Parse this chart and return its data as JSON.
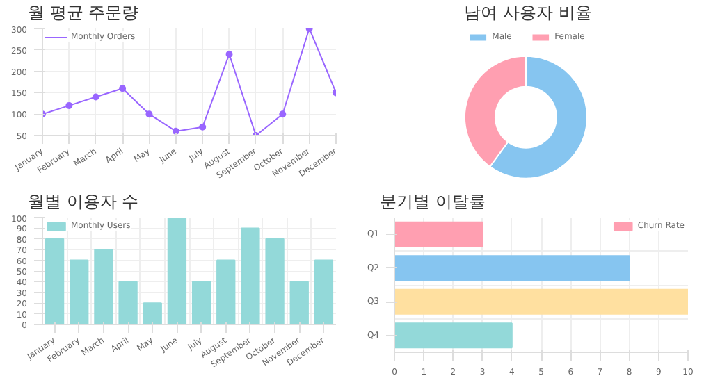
{
  "chart_data": [
    {
      "type": "line",
      "title": "월 평균 주문량",
      "categories": [
        "January",
        "February",
        "March",
        "April",
        "May",
        "June",
        "July",
        "August",
        "September",
        "October",
        "November",
        "December"
      ],
      "series": [
        {
          "name": "Monthly Orders",
          "color": "#9966ff",
          "values": [
            100,
            120,
            140,
            160,
            100,
            60,
            70,
            240,
            50,
            100,
            300,
            150
          ]
        }
      ],
      "ylim": [
        50,
        300
      ],
      "yticks": [
        50,
        100,
        150,
        200,
        250,
        300
      ],
      "grid": true,
      "legend": "top",
      "marker": "circle"
    },
    {
      "type": "donut",
      "title": "남여 사용자 비율",
      "categories": [
        "Male",
        "Female"
      ],
      "values": [
        60,
        40
      ],
      "colors": [
        "#86c5f0",
        "#ff9fb1"
      ],
      "legend": "top"
    },
    {
      "type": "bar",
      "title": "월별 이용자 수",
      "categories": [
        "January",
        "February",
        "March",
        "April",
        "May",
        "June",
        "July",
        "August",
        "September",
        "October",
        "November",
        "December"
      ],
      "series": [
        {
          "name": "Monthly Users",
          "color": "#93d9d9",
          "values": [
            80,
            60,
            70,
            40,
            20,
            100,
            40,
            60,
            90,
            80,
            40,
            60
          ]
        }
      ],
      "ylim": [
        0,
        100
      ],
      "yticks": [
        0,
        10,
        20,
        30,
        40,
        50,
        60,
        70,
        80,
        90,
        100
      ],
      "grid": true,
      "legend": "top"
    },
    {
      "type": "bar",
      "orientation": "horizontal",
      "title": "분기별 이탈률",
      "categories": [
        "Q1",
        "Q2",
        "Q3",
        "Q4"
      ],
      "series": [
        {
          "name": "Churn Rate",
          "colors": [
            "#ff9fb1",
            "#86c5f0",
            "#ffe0a0",
            "#93d9d9"
          ],
          "values": [
            3,
            8,
            10,
            4
          ]
        }
      ],
      "xlim": [
        0,
        10
      ],
      "xticks": [
        0,
        1,
        2,
        3,
        4,
        5,
        6,
        7,
        8,
        9,
        10
      ],
      "grid": true,
      "legend": "top"
    }
  ]
}
